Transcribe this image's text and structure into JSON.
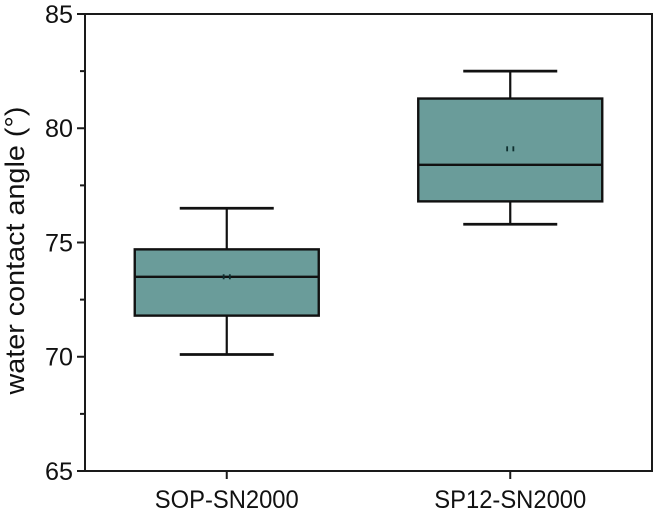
{
  "chart_data": {
    "type": "box",
    "title": "",
    "xlabel": "",
    "ylabel": "water contact angle (°)",
    "ylim": [
      65,
      85
    ],
    "y_major_ticks": [
      85,
      80,
      75,
      70,
      65
    ],
    "y_minor_ticks": [
      82.5,
      77.5,
      72.5,
      67.5
    ],
    "grid": false,
    "legend_position": "none",
    "categories": [
      "SOP-SN2000",
      "SP12-SN2000"
    ],
    "series": [
      {
        "name": "SOP-SN2000",
        "whisker_high": 76.5,
        "q3": 74.7,
        "median": 73.5,
        "q1": 71.8,
        "whisker_low": 70.1,
        "mean": 73.5
      },
      {
        "name": "SP12-SN2000",
        "whisker_high": 82.5,
        "q3": 81.3,
        "median": 78.4,
        "q1": 76.8,
        "whisker_low": 75.8,
        "mean": 79.1
      }
    ],
    "colors": {
      "box_fill": "#6a9c9a",
      "box_edge": "#111111",
      "axis": "#1a1a1a",
      "text": "#111111",
      "mean_marker": "#0e2f2f",
      "background": "#ffffff"
    }
  }
}
